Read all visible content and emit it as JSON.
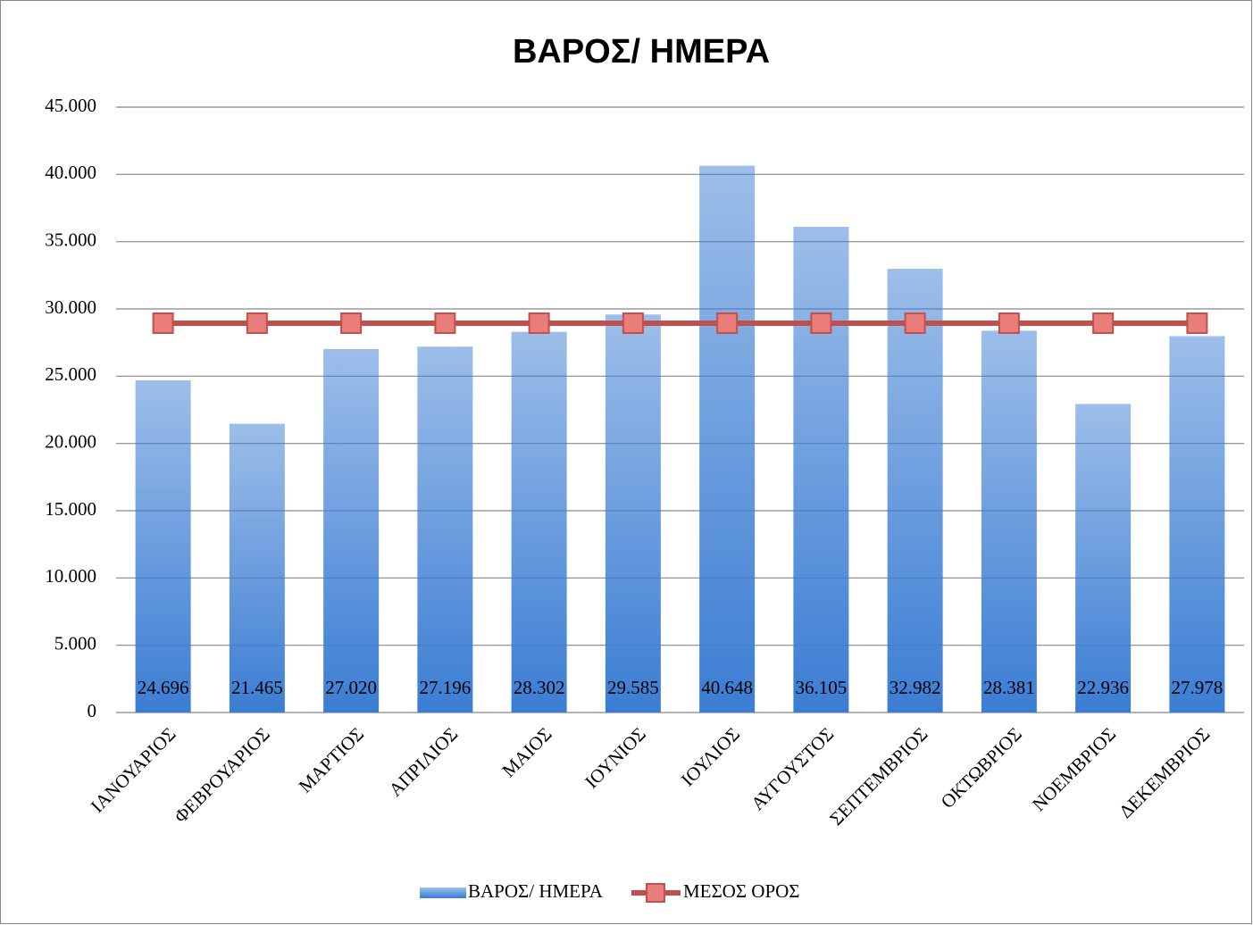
{
  "chart_data": {
    "type": "bar",
    "title": "ΒΑΡΟΣ/ ΗΜΕΡΑ",
    "categories": [
      "ΙΑΝΟΥΑΡΙΟΣ",
      "ΦΕΒΡΟΥΑΡΙΟΣ",
      "ΜΑΡΤΙΟΣ",
      "ΑΠΡΙΛΙΟΣ",
      "ΜΑΙΟΣ",
      "ΙΟΥΝΙΟΣ",
      "ΙΟΥΛΙΟΣ",
      "ΑΥΓΟΥΣΤΟΣ",
      "ΣΕΠΤΕΜΒΡΙΟΣ",
      "ΟΚΤΩΒΡΙΟΣ",
      "ΝΟΕΜΒΡΙΟΣ",
      "ΔΕΚΕΜΒΡΙΟΣ"
    ],
    "series": [
      {
        "name": "ΒΑΡΟΣ/ ΗΜΕΡΑ",
        "type": "bar",
        "color": "#3b7dd3",
        "values": [
          24696,
          21465,
          27020,
          27196,
          28302,
          29585,
          40648,
          36105,
          32982,
          28381,
          22936,
          27978
        ],
        "value_labels": [
          "24.696",
          "21.465",
          "27.020",
          "27.196",
          "28.302",
          "29.585",
          "40.648",
          "36.105",
          "32.982",
          "28.381",
          "22.936",
          "27.978"
        ]
      },
      {
        "name": "ΜΕΣΟΣ ΟΡΟΣ",
        "type": "line",
        "color": "#c0504d",
        "values": [
          28941,
          28941,
          28941,
          28941,
          28941,
          28941,
          28941,
          28941,
          28941,
          28941,
          28941,
          28941
        ]
      }
    ],
    "ylim": [
      0,
      45000
    ],
    "yticks": [
      0,
      {
        "value": 5000,
        "label": "5.000"
      },
      {
        "value": 10000,
        "label": "10.000"
      },
      {
        "value": 15000,
        "label": "15.000"
      },
      {
        "value": 20000,
        "label": "20.000"
      },
      {
        "value": 25000,
        "label": "25.000"
      },
      {
        "value": 30000,
        "label": "30.000"
      },
      {
        "value": 35000,
        "label": "35.000"
      },
      {
        "value": 40000,
        "label": "40.000"
      },
      {
        "value": 45000,
        "label": "45.000"
      }
    ],
    "grid": true,
    "legend": "bottom"
  }
}
